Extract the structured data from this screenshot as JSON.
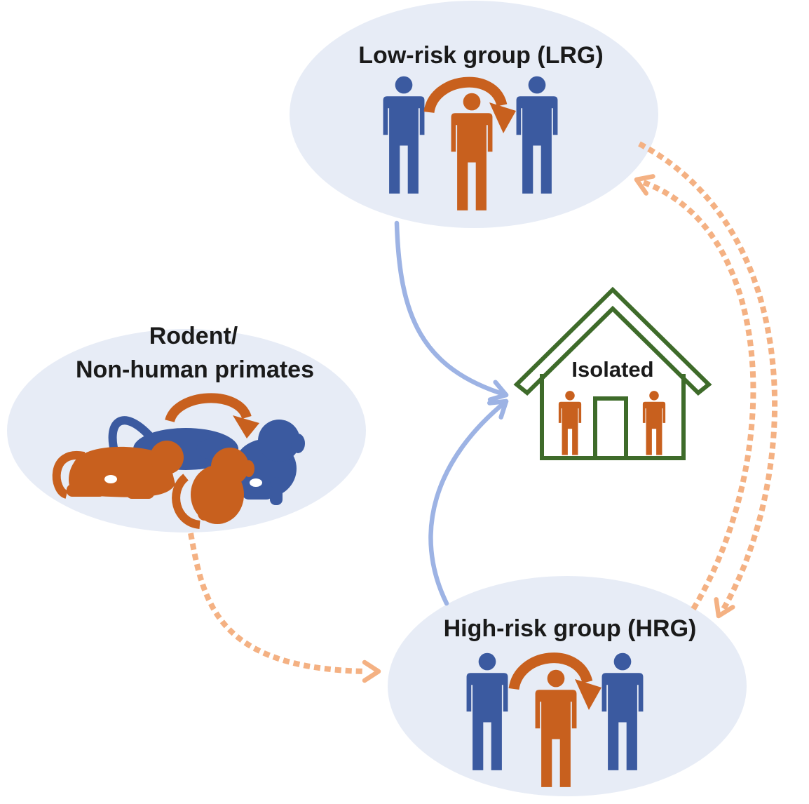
{
  "nodes": {
    "low_risk": {
      "label": "Low-risk group (LRG)"
    },
    "rodent": {
      "label_line1": "Rodent/",
      "label_line2": "Non-human primates"
    },
    "isolated": {
      "label": "Isolated"
    },
    "high_risk": {
      "label": "High-risk group (HRG)"
    }
  },
  "colors": {
    "ellipse_fill": "#e7ecf6",
    "person_blue": "#3b5aa0",
    "person_orange": "#c8601e",
    "solid_arrow": "#9db3e4",
    "dashed_arrow": "#f4b183",
    "house_outline": "#3e6b2a"
  }
}
